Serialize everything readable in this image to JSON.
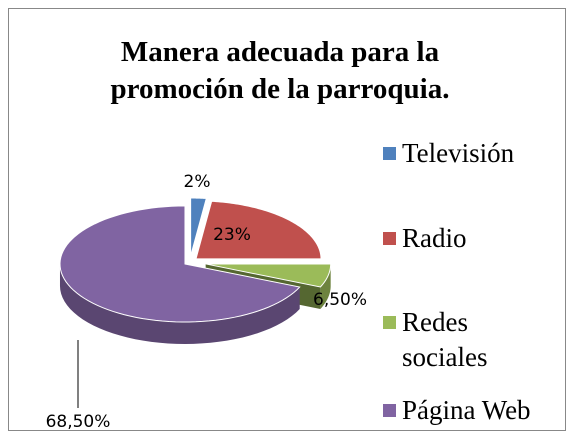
{
  "chart_data": {
    "type": "pie3d",
    "title": "Manera adecuada para la promoción de la parroquia.",
    "categories": [
      "Televisión",
      "Radio",
      "Redes sociales",
      "Página Web"
    ],
    "values": [
      2,
      23,
      6.5,
      68.5
    ],
    "value_labels": [
      "2%",
      "23%",
      "6,50%",
      "68,50%"
    ],
    "colors": [
      "#4f81bd",
      "#c0504d",
      "#9bbb59",
      "#8064a2"
    ],
    "legend": "right"
  }
}
